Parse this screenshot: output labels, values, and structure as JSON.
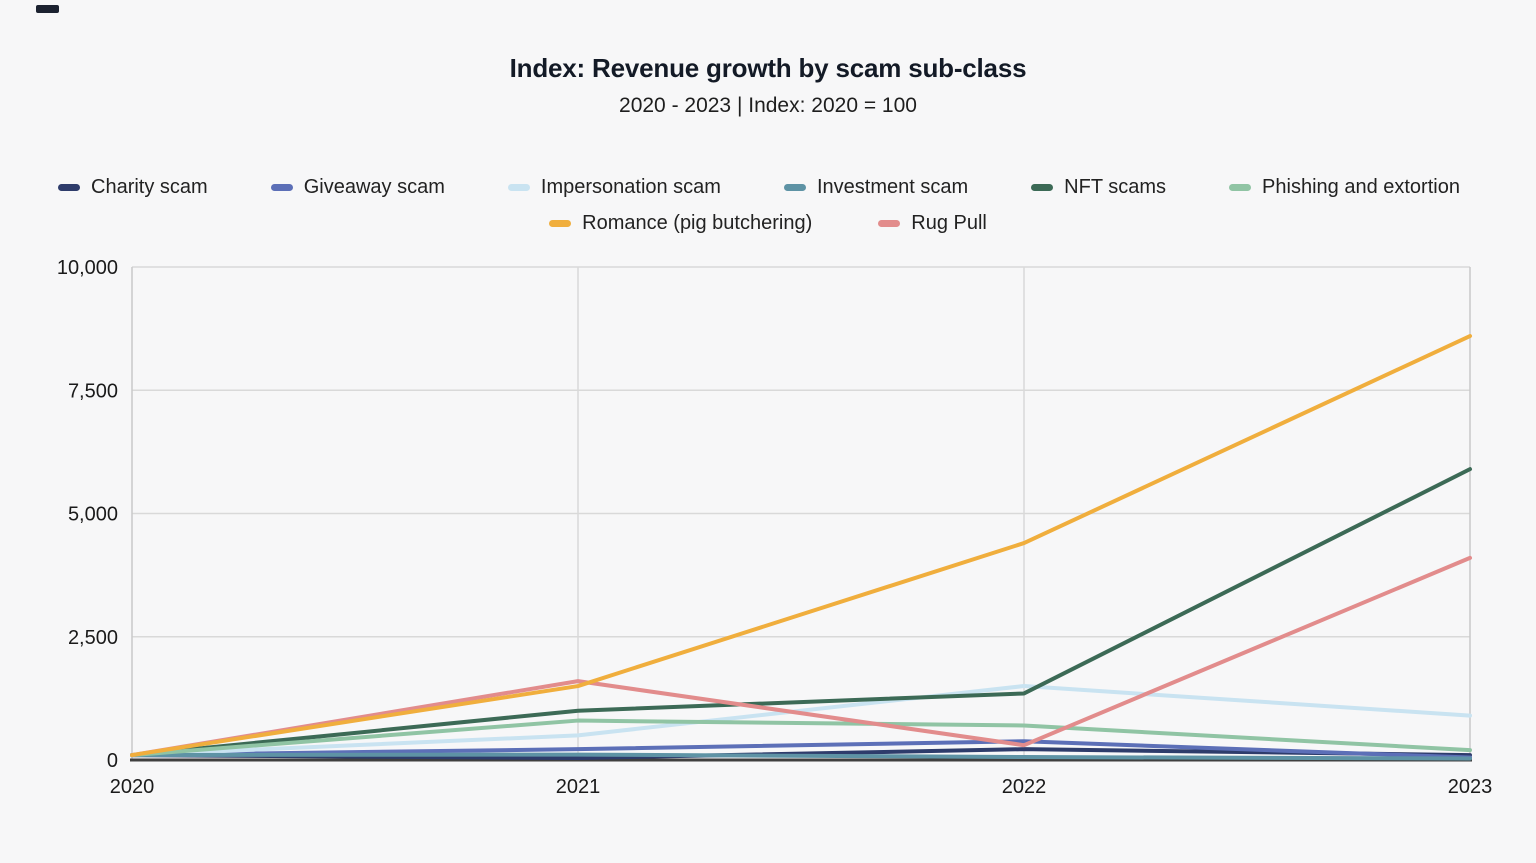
{
  "page": {
    "title": "Index: Revenue growth by scam sub-class",
    "subtitle": "2020 - 2023 | Index: 2020 = 100"
  },
  "chart_data": {
    "type": "line",
    "title": "Index: Revenue growth by scam sub-class",
    "subtitle": "2020 - 2023 | Index: 2020 = 100",
    "x": [
      2020,
      2021,
      2022,
      2023
    ],
    "x_tick_labels": [
      "2020",
      "2021",
      "2022",
      "2023"
    ],
    "xlim": [
      2020,
      2023
    ],
    "ylim": [
      0,
      10000
    ],
    "y_ticks": [
      0,
      2500,
      5000,
      7500,
      10000
    ],
    "y_tick_labels": [
      "0",
      "2,500",
      "5,000",
      "7,500",
      "10,000"
    ],
    "grid": {
      "horizontal": true,
      "vertical": true
    },
    "legend_position": "top",
    "series": [
      {
        "name": "Charity scam",
        "color": "#2e3c6b",
        "values": [
          100,
          40,
          220,
          100
        ]
      },
      {
        "name": "Giveaway scam",
        "color": "#5c6fb7",
        "values": [
          100,
          220,
          380,
          50
        ]
      },
      {
        "name": "Impersonation scam",
        "color": "#c9e3f1",
        "values": [
          100,
          500,
          1500,
          900
        ]
      },
      {
        "name": "Investment scam",
        "color": "#5e93a5",
        "values": [
          100,
          110,
          60,
          30
        ]
      },
      {
        "name": "NFT scams",
        "color": "#3c6a56",
        "values": [
          100,
          1000,
          1350,
          5900
        ]
      },
      {
        "name": "Phishing and extortion",
        "color": "#90c4a4",
        "values": [
          100,
          800,
          700,
          200
        ]
      },
      {
        "name": "Romance (pig butchering)",
        "color": "#f0ae3d",
        "values": [
          100,
          1500,
          4400,
          8600
        ]
      },
      {
        "name": "Rug Pull",
        "color": "#e28c8c",
        "values": [
          100,
          1600,
          300,
          4100
        ]
      }
    ],
    "legend_rows": [
      [
        0,
        1,
        2,
        3,
        4,
        5
      ],
      [
        6,
        7
      ]
    ],
    "draw_order": [
      0,
      1,
      2,
      3,
      4,
      5,
      7,
      6
    ]
  },
  "style": {
    "background": "#f7f7f8",
    "grid_line": "#d9d9d9",
    "plot_border": "#c9c9c9",
    "axis_line": "#3f3f3f",
    "text": "#1a1a1a"
  }
}
